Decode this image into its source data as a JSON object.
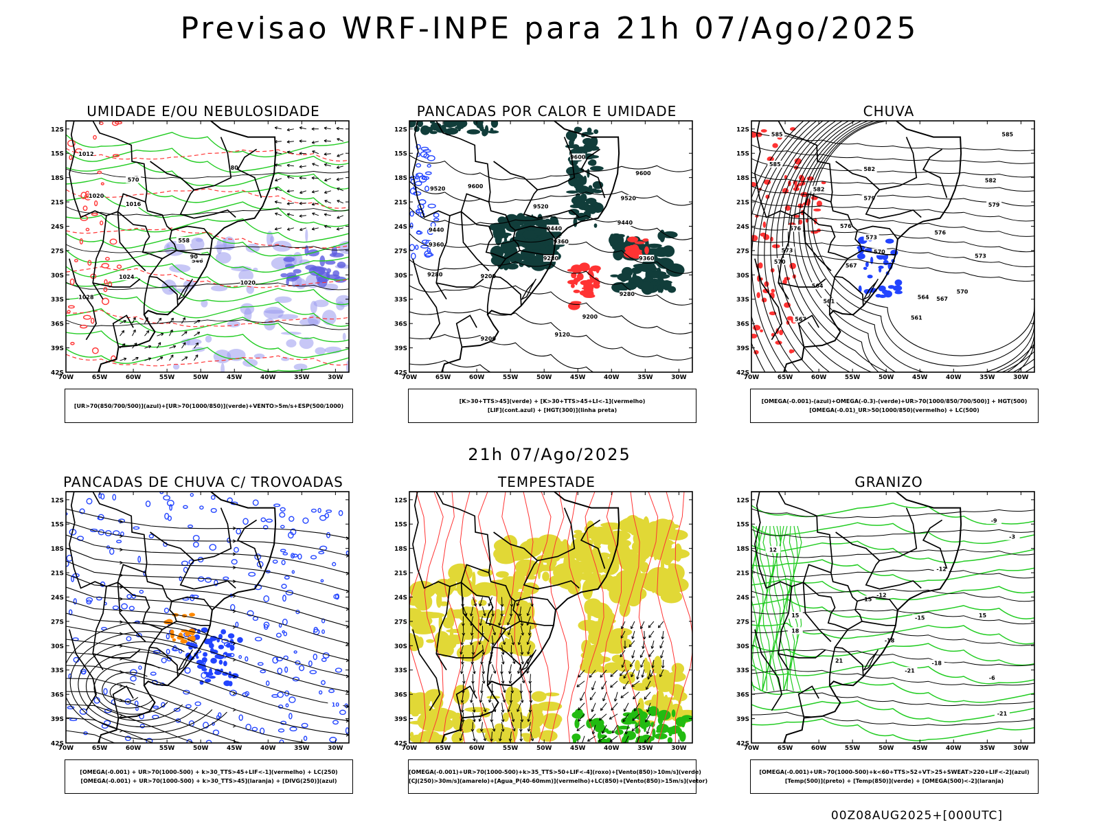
{
  "main_title": "Previsao WRF-INPE  para 21h 07/Ago/2025",
  "mid_date": "21h 07/Ago/2025",
  "footer": "00Z08AUG2025+[000UTC]",
  "axes": {
    "lat_labels": [
      "12S",
      "15S",
      "18S",
      "21S",
      "24S",
      "27S",
      "30S",
      "33S",
      "36S",
      "39S",
      "42S"
    ],
    "lon_labels": [
      "70W",
      "65W",
      "60W",
      "55W",
      "50W",
      "45W",
      "40W",
      "35W",
      "30W"
    ]
  },
  "colors": {
    "green": "#22cc22",
    "red": "#ff3333",
    "blue": "#2244ff",
    "lavender": "#9999ee",
    "dark_teal": "#113d3a",
    "yellow": "#e1d836",
    "orange": "#ff8800",
    "black": "#000000"
  },
  "panels": [
    {
      "id": "umidade",
      "title": "UMIDADE E/OU NEBULOSIDADE",
      "legend": [
        "[UR>70(850/700/500)](azul)+[UR>70(1000/850)](verde)+VENTO>5m/s+ESP(500/1000)"
      ],
      "contour_labels": [
        "1012",
        "1016",
        "1020",
        "1024",
        "1028",
        "570",
        "558",
        "546",
        "552",
        "564",
        "80",
        "90"
      ]
    },
    {
      "id": "pancadas_calor",
      "title": "PANCADAS POR CALOR E UMIDADE",
      "legend": [
        "[K>30+TTS>45](verde) + [K>30+TTS>45+LI<-1](vermelho)",
        "[LIF](cont.azul) + [HGT(300)](linha preta)"
      ],
      "contour_labels": [
        "9600",
        "9520",
        "9440",
        "9360",
        "9280",
        "9200",
        "9120"
      ]
    },
    {
      "id": "chuva",
      "title": "CHUVA",
      "legend": [
        "[OMEGA(-0.001)-(azul)+OMEGA(-0.3)-(verde)+UR>70(1000/850/700/500)] + HGT(500)",
        "[OMEGA(-0.01)_UR>50(1000/850)(vermelho) + LC(500)"
      ],
      "contour_labels": [
        "585",
        "582",
        "579",
        "576",
        "573",
        "570",
        "567",
        "564",
        "561"
      ]
    },
    {
      "id": "pancadas_trovoadas",
      "title": "PANCADAS DE CHUVA C/ TROVOADAS",
      "legend": [
        "[OMEGA(-0.001) + UR>70(1000-500) + k>30_TTS>45+LIF<-1](vermelho) + LC(250)",
        "[OMEGA(-0.001) + UR>70(1000-500) + k>30_TTS>45](laranja) + [DIVG(250)](azul)"
      ],
      "contour_labels": [
        "10"
      ]
    },
    {
      "id": "tempestade",
      "title": "TEMPESTADE",
      "legend": [
        "[OMEGA(-0.001)+UR>70(1000-500)+k>35_TTS>50+LIF<-4](roxo)+[Vento(850)>10m/s](verde)",
        "[CJ(250)>30m/s](amarelo)+[Agua_P(40-60mm)](vermelho)+LC(850)+[Vento(850)>15m/s](vetor)"
      ],
      "contour_labels": []
    },
    {
      "id": "granizo",
      "title": "GRANIZO",
      "legend": [
        "[OMEGA(-0.001)+UR>70(1000-500)+k<60+TTS>52+VT>25+SWEAT>220+LIF<-2](azul)",
        "[Temp(500)](preto) + [Temp(850)](verde) + [OMEGA(500)<-2](laranja)"
      ],
      "contour_labels": [
        "-3",
        "-6",
        "-9",
        "-12",
        "-15",
        "-18",
        "-21",
        "12",
        "15",
        "18",
        "21"
      ]
    }
  ]
}
